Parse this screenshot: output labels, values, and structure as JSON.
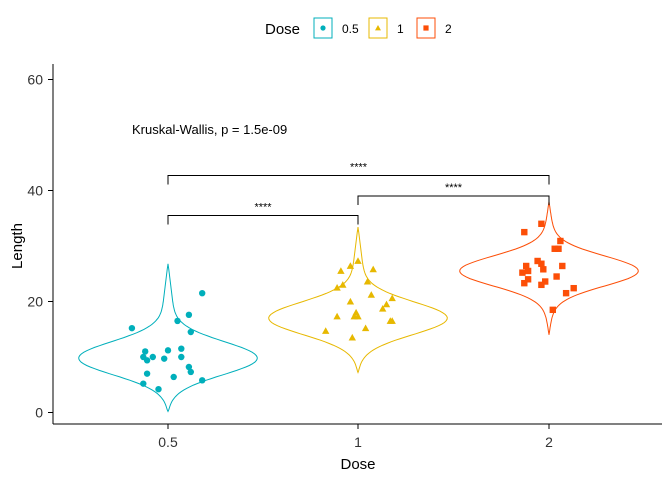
{
  "chart_data": {
    "type": "violin",
    "xlabel": "Dose",
    "ylabel": "Length",
    "categories": [
      "0.5",
      "1",
      "2"
    ],
    "ylim": [
      0,
      60
    ],
    "yticks": [
      0,
      20,
      40,
      60
    ],
    "grid": false,
    "legend": {
      "title": "Dose",
      "position": "top",
      "entries": [
        {
          "label": "0.5",
          "color": "#00AFBB",
          "marker": "circle"
        },
        {
          "label": "1",
          "color": "#E7B800",
          "marker": "triangle"
        },
        {
          "label": "2",
          "color": "#FC4E07",
          "marker": "square"
        }
      ]
    },
    "annotation": "Kruskal-Wallis, p = 1.5e-09",
    "comparisons": [
      {
        "group1": "0.5",
        "group2": "1",
        "label": "****",
        "y": 35.5
      },
      {
        "group1": "1",
        "group2": "2",
        "label": "****",
        "y": 39.0
      },
      {
        "group1": "0.5",
        "group2": "2",
        "label": "****",
        "y": 42.7
      }
    ],
    "series": [
      {
        "category": "0.5",
        "color": "#00AFBB",
        "marker": "circle",
        "violin_range": [
          0.2,
          26.8
        ],
        "violin_peak": 9.8,
        "points": [
          {
            "dx": -0.19,
            "y": 15.2
          },
          {
            "dx": 0.18,
            "y": 21.5
          },
          {
            "dx": 0.05,
            "y": 16.5
          },
          {
            "dx": 0.11,
            "y": 17.6
          },
          {
            "dx": 0.12,
            "y": 14.5
          },
          {
            "dx": -0.12,
            "y": 11.0
          },
          {
            "dx": 0.0,
            "y": 11.2
          },
          {
            "dx": 0.07,
            "y": 11.5
          },
          {
            "dx": -0.13,
            "y": 10.0
          },
          {
            "dx": -0.08,
            "y": 10.0
          },
          {
            "dx": -0.11,
            "y": 9.4
          },
          {
            "dx": -0.02,
            "y": 9.7
          },
          {
            "dx": 0.07,
            "y": 10.0
          },
          {
            "dx": 0.11,
            "y": 8.2
          },
          {
            "dx": 0.12,
            "y": 7.3
          },
          {
            "dx": -0.11,
            "y": 7.0
          },
          {
            "dx": 0.03,
            "y": 6.4
          },
          {
            "dx": 0.18,
            "y": 5.8
          },
          {
            "dx": -0.13,
            "y": 5.2
          },
          {
            "dx": -0.05,
            "y": 4.2
          }
        ]
      },
      {
        "category": "1",
        "color": "#E7B800",
        "marker": "triangle",
        "violin_range": [
          7.2,
          33.4
        ],
        "violin_peak": 17.0,
        "points": [
          {
            "dx": 0.0,
            "y": 27.3
          },
          {
            "dx": -0.04,
            "y": 26.4
          },
          {
            "dx": -0.09,
            "y": 25.5
          },
          {
            "dx": 0.08,
            "y": 25.8
          },
          {
            "dx": -0.08,
            "y": 23.0
          },
          {
            "dx": -0.11,
            "y": 22.5
          },
          {
            "dx": 0.05,
            "y": 23.6
          },
          {
            "dx": 0.07,
            "y": 21.2
          },
          {
            "dx": -0.04,
            "y": 20.0
          },
          {
            "dx": 0.18,
            "y": 20.6
          },
          {
            "dx": 0.15,
            "y": 19.5
          },
          {
            "dx": 0.13,
            "y": 18.7
          },
          {
            "dx": -0.01,
            "y": 18.0
          },
          {
            "dx": -0.02,
            "y": 17.3
          },
          {
            "dx": 0.0,
            "y": 17.3
          },
          {
            "dx": -0.11,
            "y": 17.3
          },
          {
            "dx": 0.17,
            "y": 16.5
          },
          {
            "dx": 0.18,
            "y": 16.5
          },
          {
            "dx": 0.04,
            "y": 15.2
          },
          {
            "dx": -0.17,
            "y": 14.7
          },
          {
            "dx": -0.03,
            "y": 13.5
          }
        ]
      },
      {
        "category": "2",
        "color": "#FC4E07",
        "marker": "square",
        "violin_range": [
          14.0,
          38.0
        ],
        "violin_peak": 25.5,
        "points": [
          {
            "dx": -0.13,
            "y": 32.5
          },
          {
            "dx": -0.04,
            "y": 34.0
          },
          {
            "dx": 0.06,
            "y": 30.9
          },
          {
            "dx": 0.03,
            "y": 29.5
          },
          {
            "dx": 0.05,
            "y": 29.5
          },
          {
            "dx": -0.06,
            "y": 27.3
          },
          {
            "dx": -0.04,
            "y": 26.8
          },
          {
            "dx": -0.12,
            "y": 26.4
          },
          {
            "dx": 0.07,
            "y": 26.4
          },
          {
            "dx": -0.03,
            "y": 25.8
          },
          {
            "dx": -0.11,
            "y": 25.5
          },
          {
            "dx": -0.14,
            "y": 25.2
          },
          {
            "dx": 0.04,
            "y": 24.5
          },
          {
            "dx": -0.11,
            "y": 24.0
          },
          {
            "dx": -0.02,
            "y": 23.6
          },
          {
            "dx": -0.04,
            "y": 23.0
          },
          {
            "dx": -0.13,
            "y": 23.3
          },
          {
            "dx": 0.13,
            "y": 22.4
          },
          {
            "dx": 0.09,
            "y": 21.5
          },
          {
            "dx": 0.02,
            "y": 18.5
          }
        ]
      }
    ]
  }
}
